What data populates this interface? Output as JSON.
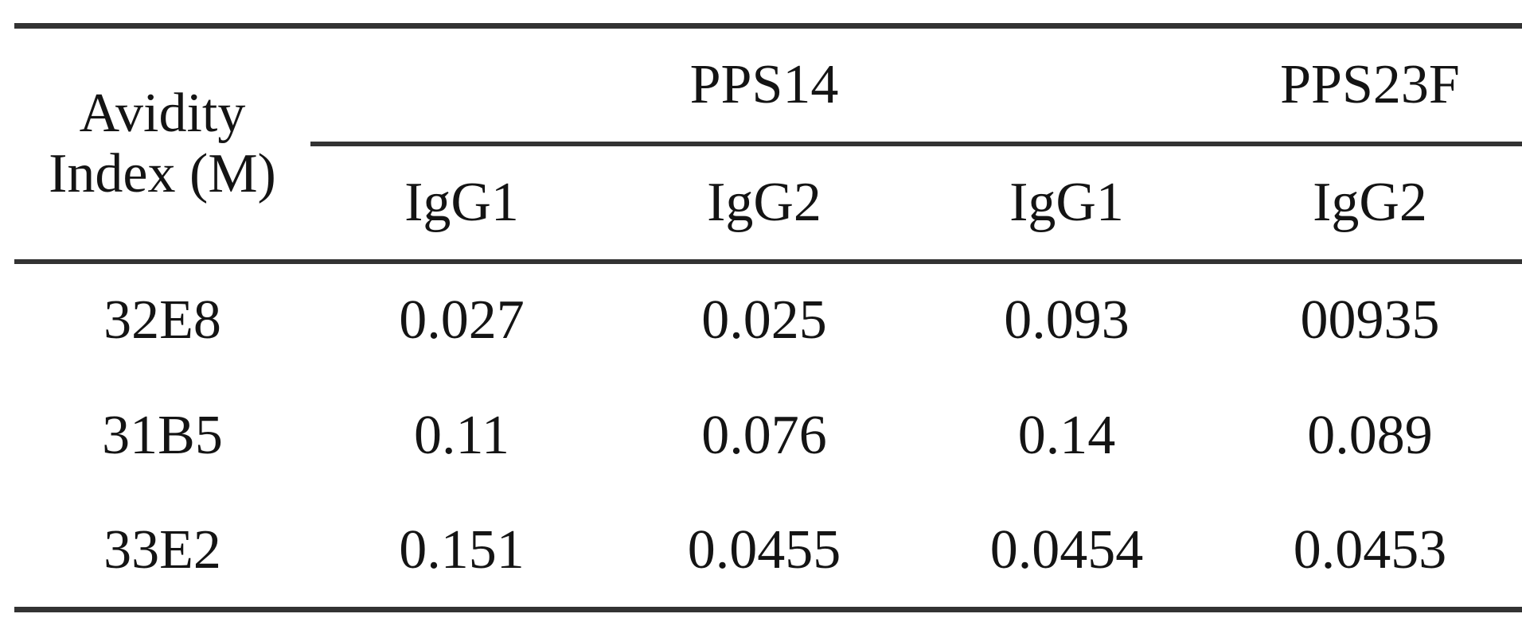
{
  "table": {
    "stub_header": {
      "line1": "Avidity",
      "line2": "Index (M)"
    },
    "groups": [
      {
        "label": "PPS14",
        "subcolumns": [
          "IgG1",
          "IgG2"
        ]
      },
      {
        "label": "PPS23F",
        "subcolumns": [
          "IgG1",
          "IgG2"
        ]
      }
    ],
    "rows": [
      {
        "label": "32E8",
        "values": [
          "0.027",
          "0.025",
          "0.093",
          "00935"
        ]
      },
      {
        "label": "31B5",
        "values": [
          "0.11",
          "0.076",
          "0.14",
          "0.089"
        ]
      },
      {
        "label": "33E2",
        "values": [
          "0.151",
          "0.0455",
          "0.0454",
          "0.0453"
        ]
      }
    ],
    "style": {
      "rule_color": "#333333",
      "text_color": "#141414",
      "background": "#ffffff"
    }
  }
}
